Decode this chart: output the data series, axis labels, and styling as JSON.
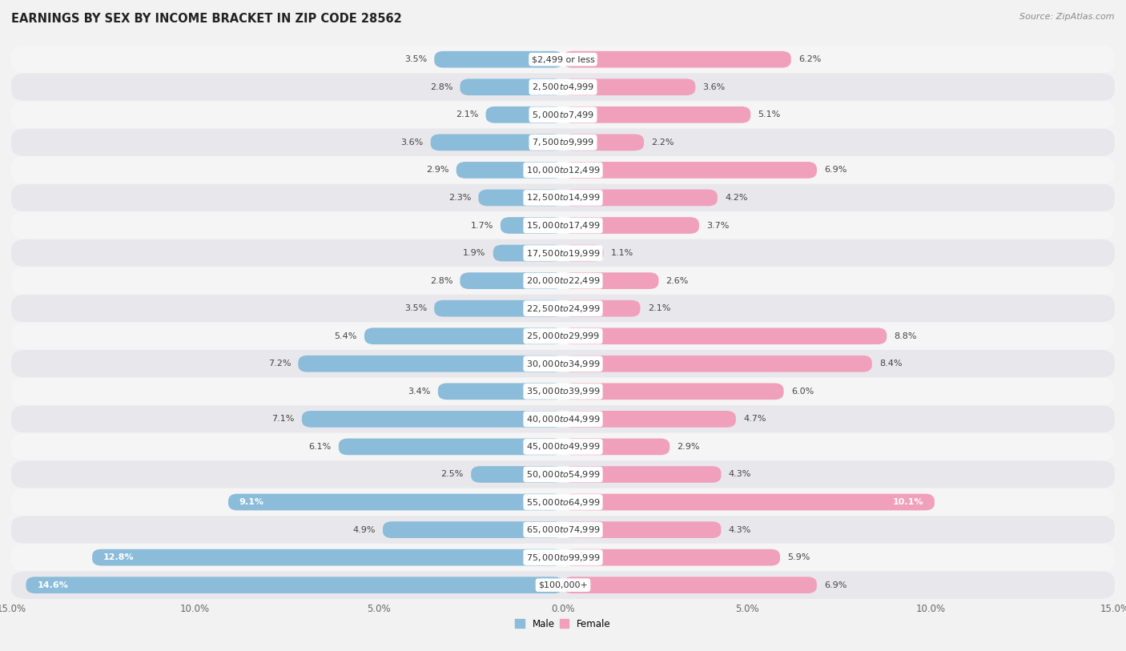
{
  "title": "EARNINGS BY SEX BY INCOME BRACKET IN ZIP CODE 28562",
  "source": "Source: ZipAtlas.com",
  "categories": [
    "$2,499 or less",
    "$2,500 to $4,999",
    "$5,000 to $7,499",
    "$7,500 to $9,999",
    "$10,000 to $12,499",
    "$12,500 to $14,999",
    "$15,000 to $17,499",
    "$17,500 to $19,999",
    "$20,000 to $22,499",
    "$22,500 to $24,999",
    "$25,000 to $29,999",
    "$30,000 to $34,999",
    "$35,000 to $39,999",
    "$40,000 to $44,999",
    "$45,000 to $49,999",
    "$50,000 to $54,999",
    "$55,000 to $64,999",
    "$65,000 to $74,999",
    "$75,000 to $99,999",
    "$100,000+"
  ],
  "male_values": [
    3.5,
    2.8,
    2.1,
    3.6,
    2.9,
    2.3,
    1.7,
    1.9,
    2.8,
    3.5,
    5.4,
    7.2,
    3.4,
    7.1,
    6.1,
    2.5,
    9.1,
    4.9,
    12.8,
    14.6
  ],
  "female_values": [
    6.2,
    3.6,
    5.1,
    2.2,
    6.9,
    4.2,
    3.7,
    1.1,
    2.6,
    2.1,
    8.8,
    8.4,
    6.0,
    4.7,
    2.9,
    4.3,
    10.1,
    4.3,
    5.9,
    6.9
  ],
  "male_color": "#8bbcda",
  "female_color": "#f0a0ba",
  "male_label": "Male",
  "female_label": "Female",
  "axis_max": 15.0,
  "row_colors": [
    "#f5f5f5",
    "#e8e8ec"
  ],
  "title_fontsize": 10.5,
  "label_fontsize": 8.0,
  "category_fontsize": 8.0,
  "tick_fontsize": 8.5,
  "source_fontsize": 8.0
}
